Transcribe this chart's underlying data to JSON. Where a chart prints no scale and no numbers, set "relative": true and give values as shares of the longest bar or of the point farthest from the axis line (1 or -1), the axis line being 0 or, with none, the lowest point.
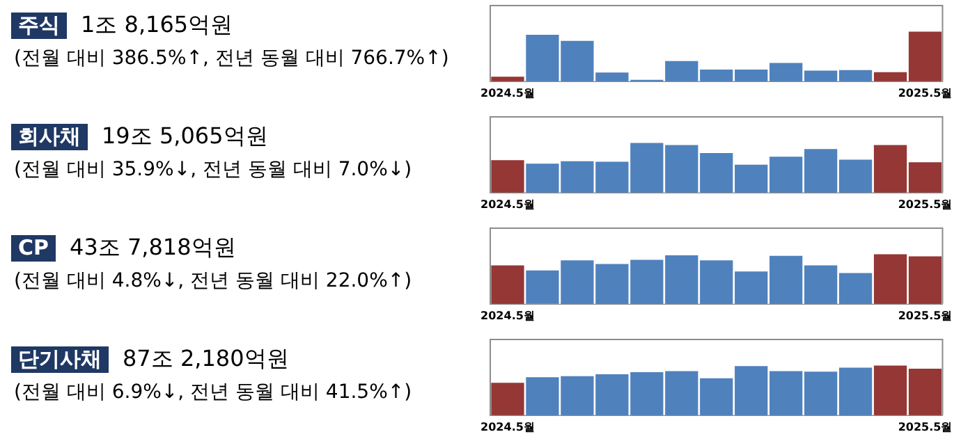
{
  "chart_data": [
    {
      "type": "bar",
      "annotations": [
        "주식",
        "1조 8,165억원",
        "(전월 대비 386.5%↑, 전년 동월 대비 766.7%↑)"
      ],
      "categories": [
        "2024.5월",
        null,
        null,
        null,
        null,
        null,
        null,
        null,
        null,
        null,
        null,
        null,
        "2025.5월"
      ],
      "values": [
        0.11,
        0.94,
        0.82,
        0.19,
        0.04,
        0.42,
        0.25,
        0.25,
        0.38,
        0.23,
        0.24,
        0.2,
        1
      ],
      "colors": [
        "#953735",
        "#4f81bd",
        "#4f81bd",
        "#4f81bd",
        "#4f81bd",
        "#4f81bd",
        "#4f81bd",
        "#4f81bd",
        "#4f81bd",
        "#4f81bd",
        "#4f81bd",
        "#953735",
        "#953735"
      ],
      "relative": true
    },
    {
      "type": "bar",
      "annotations": [
        "회사채",
        "19조 5,065억원",
        "(전월 대비 35.9%↓, 전년 동월 대비 7.0%↓)"
      ],
      "categories": [
        "2024.5월",
        null,
        null,
        null,
        null,
        null,
        null,
        null,
        null,
        null,
        null,
        null,
        "2025.5월"
      ],
      "values": [
        0.66,
        0.59,
        0.64,
        0.63,
        1,
        0.96,
        0.8,
        0.57,
        0.73,
        0.88,
        0.67,
        0.96,
        0.62
      ],
      "colors": [
        "#953735",
        "#4f81bd",
        "#4f81bd",
        "#4f81bd",
        "#4f81bd",
        "#4f81bd",
        "#4f81bd",
        "#4f81bd",
        "#4f81bd",
        "#4f81bd",
        "#4f81bd",
        "#953735",
        "#953735"
      ],
      "relative": true
    },
    {
      "type": "bar",
      "annotations": [
        "CP",
        "43조 7,818억원",
        "(전월 대비 4.8%↓, 전년 동월 대비 22.0%↑)"
      ],
      "categories": [
        "2024.5월",
        null,
        null,
        null,
        null,
        null,
        null,
        null,
        null,
        null,
        null,
        null,
        "2025.5월"
      ],
      "values": [
        0.78,
        0.68,
        0.88,
        0.81,
        0.89,
        0.98,
        0.88,
        0.66,
        0.97,
        0.78,
        0.63,
        1,
        0.96
      ],
      "colors": [
        "#953735",
        "#4f81bd",
        "#4f81bd",
        "#4f81bd",
        "#4f81bd",
        "#4f81bd",
        "#4f81bd",
        "#4f81bd",
        "#4f81bd",
        "#4f81bd",
        "#4f81bd",
        "#953735",
        "#953735"
      ],
      "relative": true
    },
    {
      "type": "bar",
      "annotations": [
        "단기사채",
        "87조 2,180억원",
        "(전월 대비 6.9%↓, 전년 동월 대비 41.5%↑)"
      ],
      "categories": [
        "2024.5월",
        null,
        null,
        null,
        null,
        null,
        null,
        null,
        null,
        null,
        null,
        null,
        "2025.5월"
      ],
      "values": [
        0.66,
        0.77,
        0.79,
        0.83,
        0.87,
        0.89,
        0.75,
        0.99,
        0.89,
        0.88,
        0.96,
        1,
        0.94
      ],
      "colors": [
        "#953735",
        "#4f81bd",
        "#4f81bd",
        "#4f81bd",
        "#4f81bd",
        "#4f81bd",
        "#4f81bd",
        "#4f81bd",
        "#4f81bd",
        "#4f81bd",
        "#4f81bd",
        "#953735",
        "#953735"
      ],
      "relative": true
    }
  ]
}
